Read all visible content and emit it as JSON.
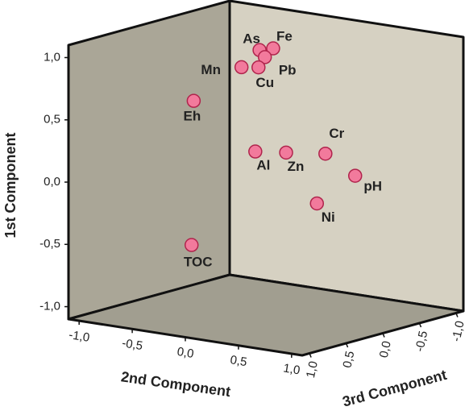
{
  "chart_data": {
    "type": "scatter3d",
    "labels": [
      "As",
      "Fe",
      "Pb",
      "Mn",
      "Cu",
      "Eh",
      "Al",
      "Zn",
      "Cr",
      "pH",
      "Ni",
      "TOC"
    ],
    "values": [
      1.02,
      1.0,
      0.97,
      0.86,
      0.88,
      0.53,
      0.2,
      0.23,
      0.27,
      0.13,
      -0.14,
      -0.63
    ],
    "x": [
      -0.06,
      -0.07,
      -0.01,
      -0.23,
      -0.07,
      -0.68,
      -0.1,
      0.19,
      0.56,
      0.84,
      0.48,
      -0.7
    ],
    "z": [
      0,
      -0.2,
      0,
      0,
      0,
      0,
      0,
      0,
      0,
      0,
      0,
      0
    ],
    "color": "#f27a9c",
    "ylabel": "1st Component",
    "xlabel": "2nd Component",
    "zlabel": "3rd Component",
    "ylim": [
      -1,
      1
    ],
    "xlim": [
      -1,
      1
    ],
    "zlim": [
      -1,
      1
    ],
    "yticks": [
      {
        "value": -1,
        "label": "-1,0"
      },
      {
        "value": -0.5,
        "label": "-0,5"
      },
      {
        "value": 0,
        "label": "0,0"
      },
      {
        "value": 0.5,
        "label": "0,5"
      },
      {
        "value": 1,
        "label": "1,0"
      }
    ],
    "xticks": [
      {
        "value": -1,
        "label": "-1,0"
      },
      {
        "value": -0.5,
        "label": "-0,5"
      },
      {
        "value": 0,
        "label": "0,0"
      },
      {
        "value": 0.5,
        "label": "0,5"
      },
      {
        "value": 1,
        "label": "1,0"
      }
    ],
    "zticks": [
      {
        "value": 1,
        "label": "1,0"
      },
      {
        "value": 0.5,
        "label": "0,5"
      },
      {
        "value": 0,
        "label": "0,0"
      },
      {
        "value": -0.5,
        "label": "-0,5"
      },
      {
        "value": -1,
        "label": "-1,0"
      }
    ]
  }
}
